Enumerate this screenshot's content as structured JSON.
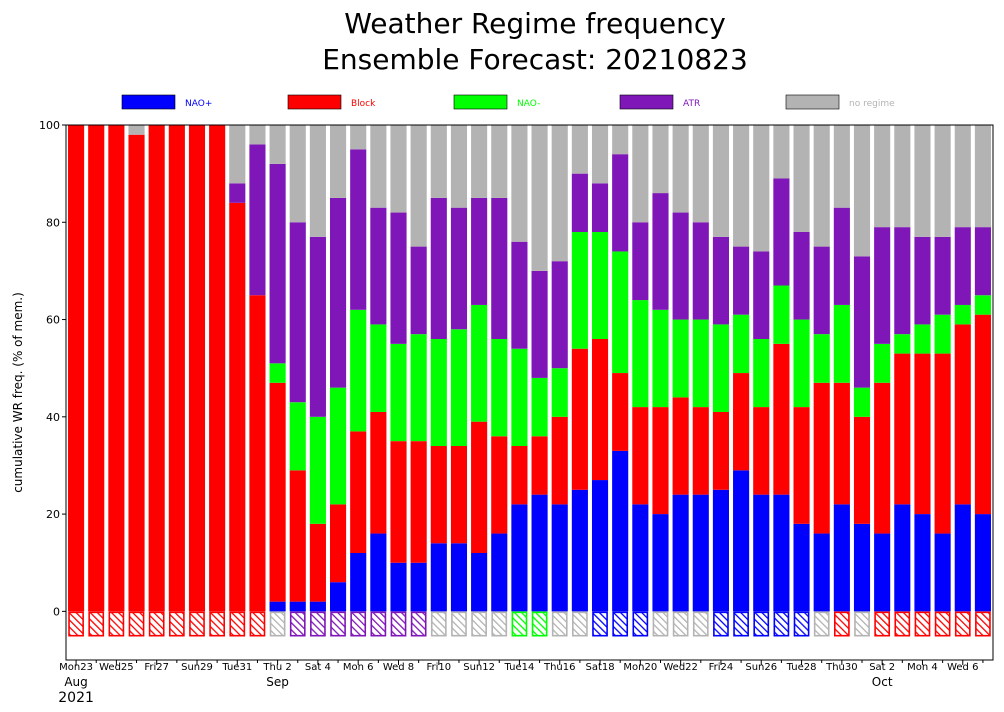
{
  "title_line1": "Weather Regime frequency",
  "title_line2": "Ensemble Forecast: 20210823",
  "colors": {
    "nao_plus": "#0000ff",
    "block": "#ff0000",
    "nao_minus": "#00ff00",
    "atr": "#7f17b8",
    "no_regime": "#b3b3b3",
    "weekend_label": "#dd0000"
  },
  "chart_data": {
    "type": "bar",
    "stacked": true,
    "title": "Weather Regime frequency\nEnsemble Forecast: 20210823",
    "xlabel": "",
    "ylabel": "cumulative WR freq. (% of mem.)",
    "ylim": [
      -10,
      100
    ],
    "yticks": [
      0,
      20,
      40,
      60,
      80,
      100
    ],
    "legend_position": "top",
    "legend": [
      {
        "key": "nao_plus",
        "label": "NAO+"
      },
      {
        "key": "block",
        "label": "Block"
      },
      {
        "key": "nao_minus",
        "label": "NAO-"
      },
      {
        "key": "atr",
        "label": "ATR"
      },
      {
        "key": "no_regime",
        "label": "no regime"
      }
    ],
    "x_tick_labels": [
      {
        "index": 0,
        "label": "Mon23",
        "weekend": false
      },
      {
        "index": 2,
        "label": "Wed25",
        "weekend": false
      },
      {
        "index": 4,
        "label": "Fri27",
        "weekend": false
      },
      {
        "index": 6,
        "label": "Sun29",
        "weekend": true
      },
      {
        "index": 8,
        "label": "Tue31",
        "weekend": false
      },
      {
        "index": 10,
        "label": "Thu 2",
        "weekend": false
      },
      {
        "index": 12,
        "label": "Sat 4",
        "weekend": false
      },
      {
        "index": 14,
        "label": "Mon 6",
        "weekend": false
      },
      {
        "index": 16,
        "label": "Wed 8",
        "weekend": false
      },
      {
        "index": 18,
        "label": "Fri10",
        "weekend": false
      },
      {
        "index": 20,
        "label": "Sun12",
        "weekend": true
      },
      {
        "index": 22,
        "label": "Tue14",
        "weekend": false
      },
      {
        "index": 24,
        "label": "Thu16",
        "weekend": false
      },
      {
        "index": 26,
        "label": "Sat18",
        "weekend": false
      },
      {
        "index": 28,
        "label": "Mon20",
        "weekend": false
      },
      {
        "index": 30,
        "label": "Wed22",
        "weekend": false
      },
      {
        "index": 32,
        "label": "Fri24",
        "weekend": false
      },
      {
        "index": 34,
        "label": "Sun26",
        "weekend": true
      },
      {
        "index": 36,
        "label": "Tue28",
        "weekend": false
      },
      {
        "index": 38,
        "label": "Thu30",
        "weekend": false
      },
      {
        "index": 40,
        "label": "Sat 2",
        "weekend": false
      },
      {
        "index": 42,
        "label": "Mon 4",
        "weekend": false
      },
      {
        "index": 44,
        "label": "Wed 6",
        "weekend": false
      }
    ],
    "month_labels": [
      {
        "index": 0,
        "label": "Aug"
      },
      {
        "index": 10,
        "label": "Sep"
      },
      {
        "index": 40,
        "label": "Oct"
      }
    ],
    "year_label": "2021",
    "series": [
      {
        "key": "nao_plus",
        "name": "NAO+",
        "values": [
          0,
          0,
          0,
          0,
          0,
          0,
          0,
          0,
          0,
          0,
          2,
          2,
          2,
          6,
          12,
          16,
          10,
          10,
          14,
          14,
          12,
          16,
          22,
          24,
          22,
          25,
          27,
          33,
          22,
          20,
          24,
          24,
          25,
          29,
          24,
          24,
          18,
          16,
          22,
          18,
          16,
          22,
          20,
          16,
          22,
          20
        ]
      },
      {
        "key": "block",
        "name": "Block",
        "values": [
          100,
          100,
          100,
          98,
          100,
          100,
          100,
          100,
          84,
          65,
          45,
          27,
          16,
          16,
          25,
          25,
          25,
          25,
          20,
          20,
          27,
          20,
          12,
          12,
          18,
          29,
          29,
          16,
          20,
          22,
          20,
          18,
          16,
          20,
          18,
          31,
          24,
          31,
          25,
          22,
          31,
          31,
          33,
          37,
          37,
          41
        ]
      },
      {
        "key": "nao_minus",
        "name": "NAO-",
        "values": [
          0,
          0,
          0,
          0,
          0,
          0,
          0,
          0,
          0,
          0,
          4,
          14,
          22,
          24,
          25,
          18,
          20,
          22,
          22,
          24,
          24,
          20,
          20,
          12,
          10,
          24,
          22,
          25,
          22,
          20,
          16,
          18,
          18,
          12,
          14,
          12,
          18,
          10,
          16,
          6,
          8,
          4,
          6,
          8,
          4,
          4
        ]
      },
      {
        "key": "atr",
        "name": "ATR",
        "values": [
          0,
          0,
          0,
          0,
          0,
          0,
          0,
          0,
          4,
          31,
          41,
          37,
          37,
          39,
          33,
          24,
          27,
          18,
          29,
          25,
          22,
          29,
          22,
          22,
          22,
          12,
          10,
          20,
          16,
          24,
          22,
          20,
          18,
          14,
          18,
          22,
          18,
          18,
          20,
          27,
          24,
          22,
          18,
          16,
          16,
          14
        ]
      },
      {
        "key": "no_regime",
        "name": "no regime",
        "values": [
          0,
          0,
          0,
          2,
          0,
          0,
          0,
          0,
          12,
          4,
          8,
          20,
          23,
          15,
          5,
          17,
          18,
          25,
          15,
          17,
          15,
          15,
          24,
          30,
          28,
          10,
          12,
          6,
          20,
          14,
          18,
          20,
          23,
          25,
          26,
          11,
          22,
          25,
          17,
          27,
          21,
          21,
          23,
          23,
          21,
          21
        ]
      }
    ],
    "dominant_regime": [
      "block",
      "block",
      "block",
      "block",
      "block",
      "block",
      "block",
      "block",
      "block",
      "block",
      "no_regime",
      "atr",
      "atr",
      "atr",
      "atr",
      "atr",
      "atr",
      "atr",
      "no_regime",
      "no_regime",
      "no_regime",
      "no_regime",
      "nao_minus",
      "nao_minus",
      "no_regime",
      "no_regime",
      "nao_plus",
      "nao_plus",
      "nao_plus",
      "no_regime",
      "no_regime",
      "no_regime",
      "nao_plus",
      "nao_plus",
      "nao_plus",
      "nao_plus",
      "nao_plus",
      "no_regime",
      "block",
      "no_regime",
      "block",
      "block",
      "block",
      "block",
      "block",
      "block"
    ]
  }
}
